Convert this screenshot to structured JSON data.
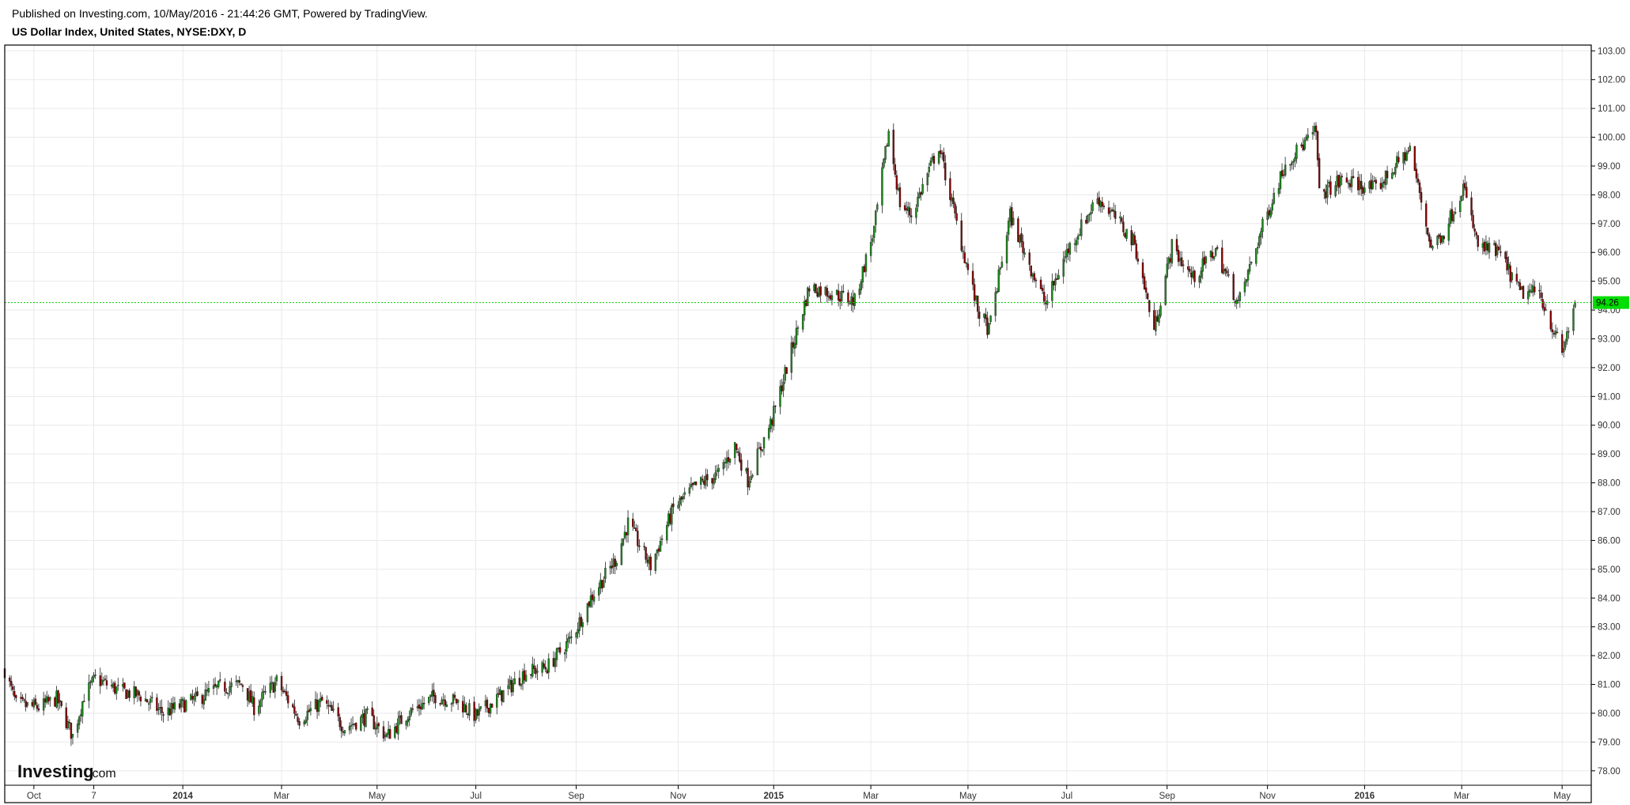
{
  "header": {
    "published": "Published on Investing.com, 10/May/2016 - 21:44:26 GMT, Powered by TradingView.",
    "title": "US Dollar Index, United States, NYSE:DXY, D"
  },
  "logo": {
    "brand": "Investing",
    "suffix": ".com"
  },
  "colors": {
    "up": "#1a8a1a",
    "down": "#8b0000",
    "last_line": "#00cc00",
    "last_bg": "#00dd00",
    "grid": "#e9e9e9",
    "frame": "#000000"
  },
  "chart_data": {
    "type": "candlestick",
    "title": "US Dollar Index, United States, NYSE:DXY, D",
    "ylim": [
      77.5,
      103.2
    ],
    "y_ticks": [
      "78.00",
      "79.00",
      "80.00",
      "81.00",
      "82.00",
      "83.00",
      "84.00",
      "85.00",
      "86.00",
      "87.00",
      "88.00",
      "89.00",
      "90.00",
      "91.00",
      "92.00",
      "93.00",
      "94.00",
      "95.00",
      "96.00",
      "97.00",
      "98.00",
      "99.00",
      "100.00",
      "101.00",
      "102.00",
      "103.00"
    ],
    "x_ticks": [
      {
        "label": "Oct",
        "date": "2013-10-01",
        "bold": false
      },
      {
        "label": "7",
        "date": "2013-11-07",
        "bold": false
      },
      {
        "label": "2014",
        "date": "2014-01-01",
        "bold": true
      },
      {
        "label": "Mar",
        "date": "2014-03-03",
        "bold": false
      },
      {
        "label": "May",
        "date": "2014-05-01",
        "bold": false
      },
      {
        "label": "Jul",
        "date": "2014-07-01",
        "bold": false
      },
      {
        "label": "Sep",
        "date": "2014-09-01",
        "bold": false
      },
      {
        "label": "Nov",
        "date": "2014-11-03",
        "bold": false
      },
      {
        "label": "2015",
        "date": "2015-01-01",
        "bold": true
      },
      {
        "label": "Mar",
        "date": "2015-03-02",
        "bold": false
      },
      {
        "label": "May",
        "date": "2015-05-01",
        "bold": false
      },
      {
        "label": "Jul",
        "date": "2015-07-01",
        "bold": false
      },
      {
        "label": "Sep",
        "date": "2015-09-01",
        "bold": false
      },
      {
        "label": "Nov",
        "date": "2015-11-02",
        "bold": false
      },
      {
        "label": "2016",
        "date": "2016-01-01",
        "bold": true
      },
      {
        "label": "Mar",
        "date": "2016-03-01",
        "bold": false
      },
      {
        "label": "May",
        "date": "2016-05-02",
        "bold": false
      }
    ],
    "x_range": [
      "2013-09-13",
      "2016-05-20"
    ],
    "last_price": 94.26,
    "last_price_label": "94.26",
    "close_path": [
      [
        "2013-09-13",
        81.5
      ],
      [
        "2013-09-20",
        80.3
      ],
      [
        "2013-10-04",
        80.2
      ],
      [
        "2013-10-15",
        80.5
      ],
      [
        "2013-10-25",
        79.2
      ],
      [
        "2013-11-01",
        80.6
      ],
      [
        "2013-11-08",
        81.2
      ],
      [
        "2013-11-22",
        80.8
      ],
      [
        "2013-12-06",
        80.6
      ],
      [
        "2013-12-20",
        80.0
      ],
      [
        "2014-01-10",
        80.5
      ],
      [
        "2014-01-24",
        80.9
      ],
      [
        "2014-02-07",
        81.0
      ],
      [
        "2014-02-14",
        80.2
      ],
      [
        "2014-02-28",
        81.1
      ],
      [
        "2014-03-14",
        79.8
      ],
      [
        "2014-03-28",
        80.4
      ],
      [
        "2014-04-11",
        79.5
      ],
      [
        "2014-04-25",
        79.9
      ],
      [
        "2014-05-07",
        79.2
      ],
      [
        "2014-05-20",
        80.0
      ],
      [
        "2014-06-06",
        80.6
      ],
      [
        "2014-06-20",
        80.4
      ],
      [
        "2014-07-01",
        79.9
      ],
      [
        "2014-07-18",
        80.7
      ],
      [
        "2014-07-31",
        81.4
      ],
      [
        "2014-08-14",
        81.6
      ],
      [
        "2014-08-29",
        82.6
      ],
      [
        "2014-09-10",
        84.0
      ],
      [
        "2014-09-26",
        85.4
      ],
      [
        "2014-10-03",
        86.6
      ],
      [
        "2014-10-17",
        85.1
      ],
      [
        "2014-10-31",
        87.1
      ],
      [
        "2014-11-14",
        87.9
      ],
      [
        "2014-11-28",
        88.3
      ],
      [
        "2014-12-08",
        89.3
      ],
      [
        "2014-12-16",
        88.1
      ],
      [
        "2014-12-31",
        90.2
      ],
      [
        "2015-01-09",
        92.0
      ],
      [
        "2015-01-23",
        94.8
      ],
      [
        "2015-02-06",
        94.6
      ],
      [
        "2015-02-20",
        94.3
      ],
      [
        "2015-03-04",
        96.8
      ],
      [
        "2015-03-13",
        100.2
      ],
      [
        "2015-03-20",
        97.7
      ],
      [
        "2015-03-27",
        97.3
      ],
      [
        "2015-04-13",
        99.7
      ],
      [
        "2015-04-24",
        97.0
      ],
      [
        "2015-05-07",
        94.0
      ],
      [
        "2015-05-14",
        93.3
      ],
      [
        "2015-05-27",
        97.3
      ],
      [
        "2015-06-05",
        96.0
      ],
      [
        "2015-06-18",
        94.2
      ],
      [
        "2015-07-01",
        96.0
      ],
      [
        "2015-07-20",
        97.9
      ],
      [
        "2015-07-31",
        97.2
      ],
      [
        "2015-08-12",
        96.3
      ],
      [
        "2015-08-24",
        93.3
      ],
      [
        "2015-09-04",
        96.2
      ],
      [
        "2015-09-17",
        95.1
      ],
      [
        "2015-10-01",
        96.1
      ],
      [
        "2015-10-15",
        94.2
      ],
      [
        "2015-10-30",
        96.9
      ],
      [
        "2015-11-13",
        99.1
      ],
      [
        "2015-12-02",
        100.2
      ],
      [
        "2015-12-04",
        98.0
      ],
      [
        "2015-12-18",
        98.5
      ],
      [
        "2016-01-08",
        98.2
      ],
      [
        "2016-01-29",
        99.6
      ],
      [
        "2016-02-11",
        96.2
      ],
      [
        "2016-02-19",
        96.7
      ],
      [
        "2016-03-02",
        98.3
      ],
      [
        "2016-03-11",
        96.2
      ],
      [
        "2016-03-24",
        96.0
      ],
      [
        "2016-04-06",
        94.6
      ],
      [
        "2016-04-18",
        94.6
      ],
      [
        "2016-05-02",
        92.5
      ],
      [
        "2016-05-10",
        94.26
      ]
    ]
  }
}
